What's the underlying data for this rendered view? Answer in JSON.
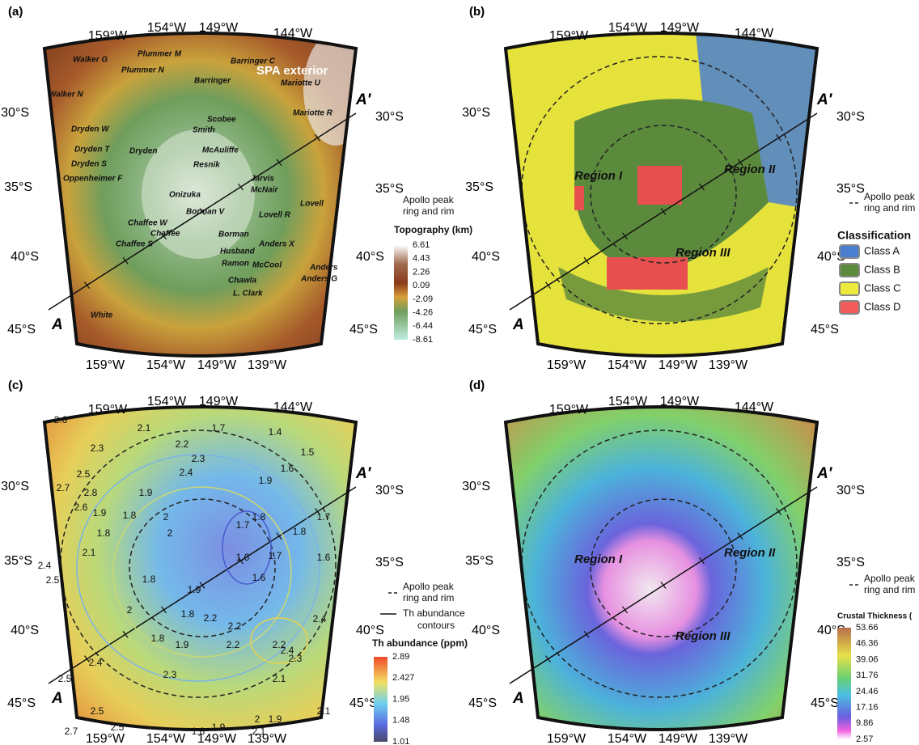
{
  "panels": [
    {
      "label": "(a)",
      "lon_top": [
        "159°W",
        "154°W",
        "149°W",
        "144°W"
      ],
      "lon_bottom": [
        "159°W",
        "154°W",
        "149°W",
        "139°W"
      ],
      "latitudes": [
        "30°S",
        "35°S",
        "40°S",
        "45°S"
      ],
      "profile": [
        "A",
        "A′"
      ],
      "highlight": "SPA exterior",
      "features": [
        "Walker G",
        "Plummer M",
        "Plummer N",
        "Barringer C",
        "Barringer",
        "Mariotte U",
        "Walker N",
        "Mariotte R",
        "Scobee",
        "Smith",
        "Dryden W",
        "Dryden T",
        "Dryden",
        "McAuliffe",
        "Dryden S",
        "Resnik",
        "Jarvis",
        "Oppenheimer F",
        "McNair",
        "Onizuka",
        "Lovell",
        "Borman V",
        "Lovell R",
        "Chaffee W",
        "Chaffee",
        "Borman",
        "Chaffee S",
        "Anders X",
        "Husband",
        "Ramon",
        "McCool",
        "Anders",
        "Anders G",
        "Chawla",
        "L. Clark",
        "White"
      ],
      "legend": {
        "line": [
          "Apollo peak",
          "ring and rim"
        ],
        "title": "Topography (km)",
        "ticks": [
          "6.61",
          "4.43",
          "2.26",
          "0.09",
          "-2.09",
          "-4.26",
          "-6.44",
          "-8.61"
        ]
      }
    },
    {
      "label": "(b)",
      "lon_top": [
        "159°W",
        "154°W",
        "149°W",
        "144°W"
      ],
      "lon_bottom": [
        "159°W",
        "154°W",
        "149°W",
        "139°W"
      ],
      "latitudes": [
        "30°S",
        "35°S",
        "40°S",
        "45°S"
      ],
      "profile": [
        "A",
        "A′"
      ],
      "regions": [
        "Region I",
        "Region II",
        "Region III"
      ],
      "legend": {
        "line": [
          "Apollo peak",
          "ring and rim"
        ],
        "title": "Classification",
        "classes": [
          {
            "name": "Class A",
            "color": "#4a7fd0"
          },
          {
            "name": "Class B",
            "color": "#5b8a3c"
          },
          {
            "name": "Class C",
            "color": "#ecea3a"
          },
          {
            "name": "Class D",
            "color": "#f05a5a"
          }
        ]
      }
    },
    {
      "label": "(c)",
      "lon_top": [
        "159°W",
        "154°W",
        "149°W",
        "144°W"
      ],
      "lon_bottom": [
        "159°W",
        "154°W",
        "149°W",
        "139°W"
      ],
      "latitudes": [
        "30°S",
        "35°S",
        "40°S",
        "45°S"
      ],
      "profile": [
        "A",
        "A′"
      ],
      "contour_labels": [
        "2.6",
        "2.3",
        "2.1",
        "2.2",
        "2.4",
        "2.3",
        "1.7",
        "1.4",
        "1.6",
        "1.5",
        "1.9",
        "2.5",
        "2.7",
        "2.6",
        "2.8",
        "1.9",
        "1.8",
        "1.9",
        "1.8",
        "2.1",
        "2",
        "2",
        "1.7",
        "1.8",
        "1.6",
        "1.6",
        "1.7",
        "1.8",
        "1.7",
        "1.6",
        "2.4",
        "2.5",
        "1.8",
        "1.9",
        "2",
        "1.8",
        "1.8",
        "1.9",
        "2.2",
        "2.2",
        "2.2",
        "2.2",
        "2.4",
        "2.3",
        "2.1",
        "2.4",
        "2.5",
        "2.5",
        "2.3",
        "2.5",
        "2.7",
        "1.8",
        "1.9",
        "2",
        "1.9",
        "2.1",
        "2.1",
        "2.4"
      ],
      "legend": {
        "line": [
          "Apollo peak",
          "ring and rim"
        ],
        "contours": [
          "Th abundance",
          "contours"
        ],
        "title": "Th abundance (ppm)",
        "ticks": [
          "2.89",
          "2.427",
          "1.95",
          "1.48",
          "1.01"
        ]
      }
    },
    {
      "label": "(d)",
      "lon_top": [
        "159°W",
        "154°W",
        "149°W",
        "144°W"
      ],
      "lon_bottom": [
        "159°W",
        "154°W",
        "149°W",
        "139°W"
      ],
      "latitudes": [
        "30°S",
        "35°S",
        "40°S",
        "45°S"
      ],
      "profile": [
        "A",
        "A′"
      ],
      "regions": [
        "Region I",
        "Region II",
        "Region III"
      ],
      "legend": {
        "line": [
          "Apollo peak",
          "ring and rim"
        ],
        "title": "Crustal Thickness (",
        "ticks": [
          "53.66",
          "46.36",
          "39.06",
          "31.76",
          "24.46",
          "17.16",
          "9.86",
          "2.57"
        ]
      }
    }
  ]
}
